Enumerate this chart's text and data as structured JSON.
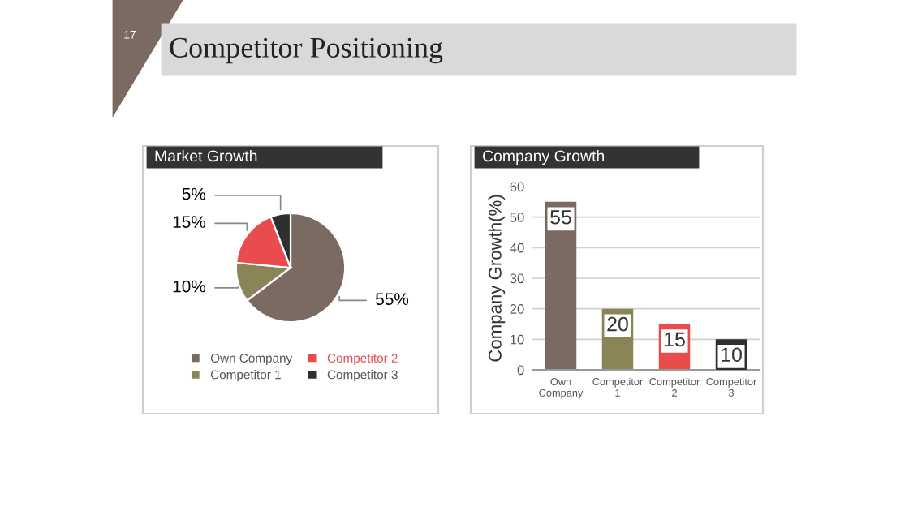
{
  "chart_data": [
    {
      "type": "pie",
      "title": "Market Growth",
      "annotations": [
        "17",
        "Competitor Positioning"
      ],
      "categories": [
        "Own Company",
        "Competitor 1",
        "Competitor 2",
        "Competitor 3"
      ],
      "values": [
        55,
        10,
        15,
        5
      ],
      "colors": [
        "#7a6a62",
        "#8b8456",
        "#e84c4c",
        "#2f2f2f"
      ],
      "value_labels": [
        "55%",
        "10%",
        "15%",
        "5%"
      ],
      "legend": "bottom"
    },
    {
      "type": "bar",
      "title": "Company Growth",
      "ylabel": "Company Growth(%)",
      "categories": [
        "Own Company",
        "Competitor 1",
        "Competitor 2",
        "Competitor 3"
      ],
      "values": [
        55,
        20,
        15,
        10
      ],
      "colors": [
        "#7a6a62",
        "#8b8456",
        "#e84c4c",
        "#2f2f2f"
      ],
      "ylim": [
        0,
        60
      ],
      "yticks": [
        0,
        10,
        20,
        30,
        40,
        50,
        60
      ],
      "grid": "y",
      "data_labels": true
    }
  ]
}
